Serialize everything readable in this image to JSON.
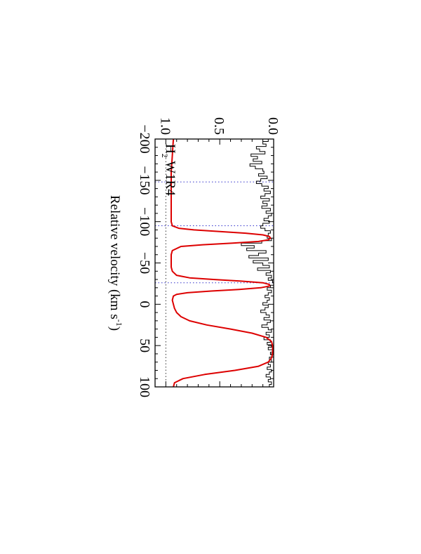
{
  "chart_data": {
    "type": "line",
    "orientation": "rotated-90-clockwise",
    "xlabel": "Relative velocity (km s",
    "xlabel_sup": "-1",
    "xlabel_close": ")",
    "xlim": [
      -200,
      100
    ],
    "ylim": [
      0.0,
      1.1
    ],
    "x_ticks": [
      -200,
      -150,
      -100,
      -50,
      0,
      50,
      100
    ],
    "x_tick_labels": [
      "−200",
      "−150",
      "−100",
      "−50",
      "0",
      "50",
      "100"
    ],
    "y_ticks": [
      0.0,
      0.5,
      1.0
    ],
    "y_tick_labels": [
      "0.0",
      "0.5",
      "1.0"
    ],
    "line_label": {
      "prefix": "H",
      "subscript": "2",
      "suffix": " W1R4"
    },
    "reference_lines": {
      "continuum_level": 1.0,
      "zero_level": 0.0,
      "component_velocities": [
        -148,
        -95,
        -26
      ],
      "color": "#3333cc"
    },
    "series": [
      {
        "kind": "data-histogram",
        "color": "#000000",
        "x": [
          -200,
          -197,
          -194,
          -191,
          -188,
          -185,
          -182,
          -179,
          -176,
          -173,
          -170,
          -167,
          -164,
          -161,
          -158,
          -155,
          -152,
          -149,
          -146,
          -143,
          -140,
          -137,
          -134,
          -131,
          -128,
          -125,
          -122,
          -119,
          -116,
          -113,
          -110,
          -107,
          -104,
          -101,
          -98,
          -95,
          -92,
          -89,
          -86,
          -83,
          -80,
          -77,
          -74,
          -71,
          -68,
          -65,
          -62,
          -59,
          -56,
          -53,
          -50,
          -47,
          -44,
          -41,
          -38,
          -35,
          -32,
          -29,
          -26,
          -23,
          -20,
          -17,
          -14,
          -11,
          -8,
          -5,
          -2,
          1,
          4,
          7,
          10,
          13,
          16,
          19,
          22,
          25,
          28,
          31,
          34,
          37,
          40,
          43,
          46,
          49,
          52,
          55,
          58,
          61,
          64,
          67,
          70,
          73,
          76,
          79,
          82,
          85,
          88,
          91,
          94,
          97,
          100
        ],
        "y": [
          0.05,
          0.1,
          0.07,
          0.16,
          0.13,
          0.08,
          0.21,
          0.15,
          0.19,
          0.11,
          0.22,
          0.17,
          0.1,
          0.09,
          0.14,
          0.06,
          0.12,
          0.16,
          0.11,
          0.05,
          0.09,
          0.03,
          0.08,
          0.12,
          0.04,
          0.1,
          0.06,
          0.11,
          0.03,
          0.07,
          0.02,
          0.05,
          0.09,
          0.04,
          0.1,
          0.12,
          0.08,
          0.03,
          0.05,
          0.06,
          0.02,
          0.11,
          0.3,
          0.18,
          0.25,
          0.07,
          0.14,
          0.23,
          0.05,
          0.19,
          0.1,
          0.04,
          0.15,
          0.03,
          0.07,
          0.02,
          0.05,
          0.01,
          0.0,
          0.03,
          0.06,
          0.02,
          0.05,
          0.08,
          0.04,
          0.06,
          0.1,
          0.05,
          0.08,
          0.12,
          0.07,
          0.04,
          0.09,
          0.03,
          0.06,
          0.11,
          0.05,
          0.02,
          0.07,
          0.04,
          0.09,
          0.03,
          0.06,
          0.02,
          0.05,
          0.01,
          0.03,
          0.0,
          0.04,
          0.02,
          0.05,
          0.03,
          0.06,
          0.02,
          0.04,
          0.07,
          0.03,
          0.05,
          0.02,
          0.04,
          0.03
        ]
      },
      {
        "kind": "model",
        "color": "#dd0000",
        "x": [
          -200,
          -190,
          -180,
          -170,
          -160,
          -150,
          -140,
          -130,
          -120,
          -110,
          -100,
          -95,
          -92,
          -90,
          -88,
          -86,
          -84,
          -82,
          -80,
          -78,
          -76,
          -74,
          -72,
          -70,
          -65,
          -60,
          -55,
          -50,
          -45,
          -40,
          -35,
          -32,
          -30,
          -28,
          -26,
          -24,
          -22,
          -20,
          -18,
          -16,
          -14,
          -12,
          -10,
          -5,
          0,
          5,
          10,
          15,
          20,
          25,
          30,
          35,
          40,
          45,
          50,
          55,
          60,
          65,
          70,
          75,
          80,
          85,
          90,
          95,
          100
        ],
        "y": [
          0.93,
          0.935,
          0.94,
          0.945,
          0.95,
          0.95,
          0.95,
          0.95,
          0.95,
          0.95,
          0.95,
          0.94,
          0.88,
          0.74,
          0.5,
          0.26,
          0.1,
          0.04,
          0.03,
          0.05,
          0.14,
          0.38,
          0.66,
          0.86,
          0.94,
          0.95,
          0.95,
          0.95,
          0.95,
          0.94,
          0.9,
          0.78,
          0.56,
          0.3,
          0.1,
          0.04,
          0.04,
          0.12,
          0.32,
          0.58,
          0.8,
          0.9,
          0.93,
          0.94,
          0.93,
          0.92,
          0.9,
          0.86,
          0.78,
          0.62,
          0.4,
          0.2,
          0.07,
          0.02,
          0.01,
          0.01,
          0.01,
          0.02,
          0.05,
          0.14,
          0.36,
          0.64,
          0.84,
          0.92,
          0.93
        ]
      }
    ]
  }
}
